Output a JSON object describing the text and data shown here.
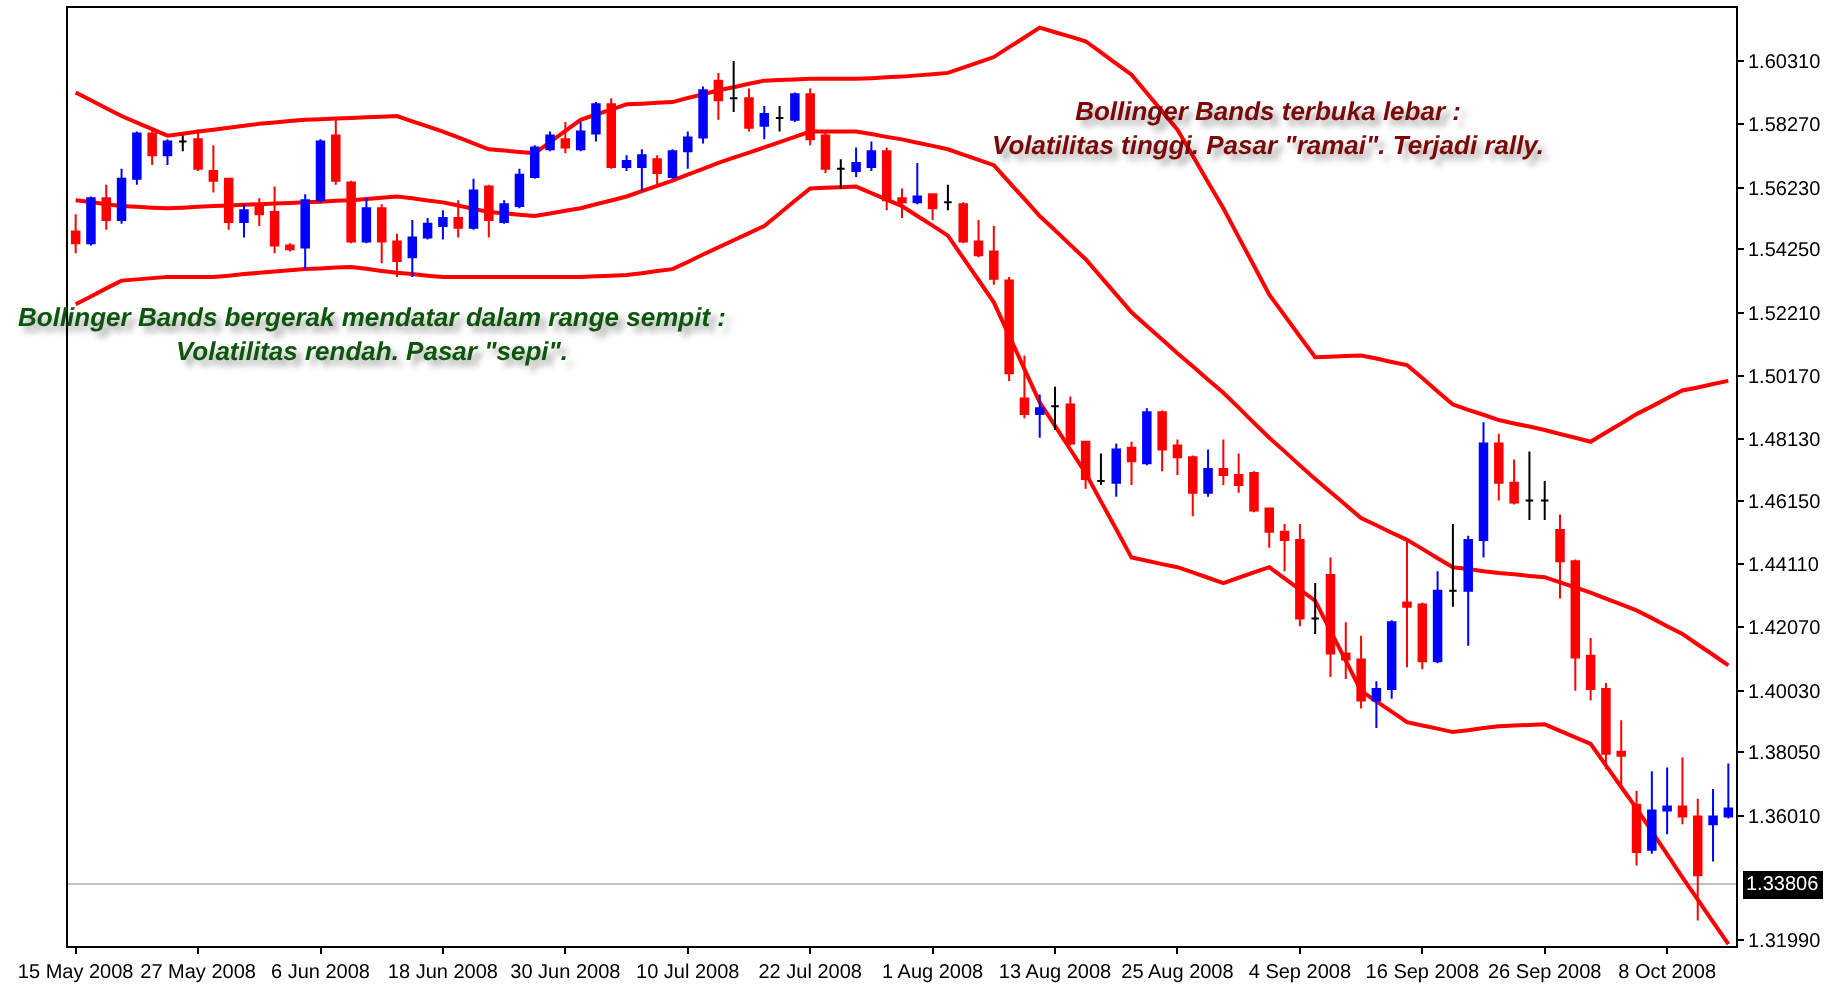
{
  "chart_data": {
    "type": "candlestick",
    "annotations": [
      "Bollinger Bands bergerak mendatar dalam range sempit :\nVolatilitas rendah. Pasar \"sepi\".",
      "Bollinger Bands terbuka lebar :\nVolatilitas tinggi. Pasar \"ramai\". Terjadi rally."
    ],
    "categories": [
      "15 May 2008",
      null,
      null,
      null,
      null,
      null,
      null,
      null,
      "27 May 2008",
      null,
      null,
      null,
      null,
      null,
      null,
      null,
      "6 Jun 2008",
      null,
      null,
      null,
      null,
      null,
      null,
      null,
      "18 Jun 2008",
      null,
      null,
      null,
      null,
      null,
      null,
      null,
      "30 Jun 2008",
      null,
      null,
      null,
      null,
      null,
      null,
      null,
      "10 Jul 2008",
      null,
      null,
      null,
      null,
      null,
      null,
      null,
      "22 Jul 2008",
      null,
      null,
      null,
      null,
      null,
      null,
      null,
      "1 Aug 2008",
      null,
      null,
      null,
      null,
      null,
      null,
      null,
      "13 Aug 2008",
      null,
      null,
      null,
      null,
      null,
      null,
      null,
      "25 Aug 2008",
      null,
      null,
      null,
      null,
      null,
      null,
      null,
      "4 Sep 2008",
      null,
      null,
      null,
      null,
      null,
      null,
      null,
      "16 Sep 2008",
      null,
      null,
      null,
      null,
      null,
      null,
      null,
      "26 Sep 2008",
      null,
      null,
      null,
      null,
      null,
      null,
      null,
      "8 Oct 2008",
      null,
      null,
      null,
      null
    ],
    "ylim": [
      1.3181,
      1.6202
    ],
    "yticks": [
      {
        "value": 1.6031,
        "label": "1.60310"
      },
      {
        "value": 1.5827,
        "label": "1.58270"
      },
      {
        "value": 1.5623,
        "label": "1.56230"
      },
      {
        "value": 1.5425,
        "label": "1.54250"
      },
      {
        "value": 1.5221,
        "label": "1.52210"
      },
      {
        "value": 1.5017,
        "label": "1.50170"
      },
      {
        "value": 1.4813,
        "label": "1.48130"
      },
      {
        "value": 1.4615,
        "label": "1.46150"
      },
      {
        "value": 1.4411,
        "label": "1.44110"
      },
      {
        "value": 1.4207,
        "label": "1.42070"
      },
      {
        "value": 1.4003,
        "label": "1.40030"
      },
      {
        "value": 1.3805,
        "label": "1.38050"
      },
      {
        "value": 1.3601,
        "label": "1.36010"
      },
      {
        "value": 1.3199,
        "label": "1.31990"
      }
    ],
    "ref_lines": [
      {
        "axis": "y",
        "value": 1.33806,
        "label": "1.33806",
        "color": "#c0c0c0"
      }
    ],
    "series": [
      {
        "type": "line",
        "color": "#ff0000",
        "values": [
          1.593,
          1.5905,
          1.5879,
          1.5854,
          1.5833,
          1.5812,
          1.5791,
          1.5797,
          1.5804,
          1.581,
          1.5816,
          1.5823,
          1.5829,
          1.5833,
          1.5838,
          1.5842,
          1.5844,
          1.5846,
          1.5848,
          1.585,
          1.5852,
          1.5854,
          1.5837,
          1.5821,
          1.5804,
          1.5785,
          1.5766,
          1.5747,
          1.5743,
          1.5738,
          1.5734,
          1.577,
          1.5806,
          1.5842,
          1.5859,
          1.5875,
          1.5892,
          1.5894,
          1.5897,
          1.5899,
          1.5912,
          1.5924,
          1.5937,
          1.5947,
          1.5958,
          1.5968,
          1.597,
          1.5972,
          1.5974,
          1.5974,
          1.5974,
          1.5974,
          1.5976,
          1.5979,
          1.5981,
          1.5985,
          1.5989,
          1.5993,
          1.601,
          1.6027,
          1.6044,
          1.6076,
          1.6107,
          1.6139,
          1.6124,
          1.611,
          1.6095,
          1.6059,
          1.6023,
          1.5987,
          1.5928,
          1.5869,
          1.581,
          1.5726,
          1.5641,
          1.5557,
          1.5464,
          1.5372,
          1.5279,
          1.5212,
          1.5144,
          1.5077,
          1.5079,
          1.5081,
          1.5083,
          1.5073,
          1.5062,
          1.5052,
          1.501,
          1.4967,
          1.4925,
          1.4908,
          1.4892,
          1.4875,
          1.4864,
          1.4854,
          1.4843,
          1.483,
          1.4818,
          1.4805,
          1.4835,
          1.4864,
          1.4894,
          1.4919,
          1.4945,
          1.497,
          1.498,
          1.4991,
          1.5001
        ]
      },
      {
        "type": "line",
        "color": "#ff0000",
        "values": [
          1.5583,
          1.5577,
          1.557,
          1.5564,
          1.5562,
          1.5559,
          1.5557,
          1.5559,
          1.5562,
          1.5564,
          1.5566,
          1.5568,
          1.557,
          1.5572,
          1.5574,
          1.5576,
          1.5578,
          1.5581,
          1.5583,
          1.5587,
          1.5591,
          1.5595,
          1.5589,
          1.5582,
          1.5576,
          1.5566,
          1.5555,
          1.5545,
          1.5541,
          1.5536,
          1.5532,
          1.554,
          1.5549,
          1.5557,
          1.557,
          1.5582,
          1.5595,
          1.5612,
          1.5629,
          1.5646,
          1.5665,
          1.5684,
          1.5703,
          1.572,
          1.5736,
          1.5753,
          1.577,
          1.5787,
          1.5804,
          1.5804,
          1.5804,
          1.5804,
          1.5796,
          1.5787,
          1.5779,
          1.5768,
          1.5758,
          1.5747,
          1.573,
          1.5713,
          1.5696,
          1.5641,
          1.5587,
          1.5532,
          1.5486,
          1.5439,
          1.5393,
          1.5336,
          1.5279,
          1.5222,
          1.5178,
          1.5134,
          1.509,
          1.5048,
          1.5005,
          1.4963,
          1.4915,
          1.4866,
          1.4818,
          1.4774,
          1.4729,
          1.4685,
          1.4643,
          1.4601,
          1.4559,
          1.4536,
          1.4512,
          1.4489,
          1.446,
          1.443,
          1.4401,
          1.4395,
          1.4388,
          1.4382,
          1.4378,
          1.4373,
          1.4369,
          1.4352,
          1.4336,
          1.4319,
          1.43,
          1.4281,
          1.4262,
          1.4237,
          1.4211,
          1.4186,
          1.4152,
          1.4119,
          1.4085
        ]
      },
      {
        "type": "line",
        "color": "#ff0000",
        "values": [
          1.5248,
          1.5273,
          1.5299,
          1.5324,
          1.5328,
          1.5332,
          1.5336,
          1.5336,
          1.5336,
          1.5336,
          1.534,
          1.5345,
          1.5349,
          1.5353,
          1.5357,
          1.5361,
          1.5363,
          1.5366,
          1.5368,
          1.5362,
          1.5355,
          1.5349,
          1.5345,
          1.534,
          1.5336,
          1.5336,
          1.5336,
          1.5336,
          1.5336,
          1.5336,
          1.5336,
          1.5336,
          1.5336,
          1.5336,
          1.5338,
          1.534,
          1.5342,
          1.5348,
          1.5355,
          1.5361,
          1.5384,
          1.5408,
          1.5431,
          1.5454,
          1.5477,
          1.55,
          1.554,
          1.5581,
          1.5621,
          1.5623,
          1.5625,
          1.5627,
          1.5606,
          1.5585,
          1.5564,
          1.5532,
          1.5501,
          1.5469,
          1.5397,
          1.5326,
          1.5254,
          1.5147,
          1.5039,
          1.4932,
          1.4856,
          1.478,
          1.4704,
          1.4613,
          1.4523,
          1.4432,
          1.4422,
          1.4411,
          1.4401,
          1.4384,
          1.4367,
          1.435,
          1.4367,
          1.4384,
          1.4401,
          1.4365,
          1.4329,
          1.4293,
          1.4196,
          1.41,
          1.4003,
          1.3969,
          1.3936,
          1.3902,
          1.3891,
          1.3881,
          1.387,
          1.3876,
          1.3883,
          1.3889,
          1.3891,
          1.3893,
          1.3895,
          1.3874,
          1.3853,
          1.3832,
          1.3763,
          1.3693,
          1.3624,
          1.355,
          1.3476,
          1.3402,
          1.333,
          1.3259,
          1.3187
        ]
      },
      {
        "colors": [
          "#ff0000",
          "#0000ff",
          "#ff0000",
          "#0000ff",
          "#0000ff",
          "#ff0000",
          "#0000ff",
          "#000000",
          "#ff0000",
          "#ff0000",
          "#ff0000",
          "#0000ff",
          "#ff0000",
          "#ff0000",
          "#ff0000",
          "#0000ff",
          "#0000ff",
          "#ff0000",
          "#ff0000",
          "#0000ff",
          "#ff0000",
          "#ff0000",
          "#0000ff",
          "#0000ff",
          "#0000ff",
          "#ff0000",
          "#0000ff",
          "#ff0000",
          "#0000ff",
          "#0000ff",
          "#0000ff",
          "#0000ff",
          "#ff0000",
          "#0000ff",
          "#0000ff",
          "#ff0000",
          "#0000ff",
          "#0000ff",
          "#ff0000",
          "#0000ff",
          "#0000ff",
          "#0000ff",
          "#ff0000",
          "#000000",
          "#ff0000",
          "#0000ff",
          "#000000",
          "#0000ff",
          "#ff0000",
          "#ff0000",
          "#000000",
          "#0000ff",
          "#0000ff",
          "#ff0000",
          "#ff0000",
          "#0000ff",
          "#ff0000",
          "#000000",
          "#ff0000",
          "#ff0000",
          "#ff0000",
          "#ff0000",
          "#ff0000",
          "#0000ff",
          "#000000",
          "#ff0000",
          "#ff0000",
          "#000000",
          "#0000ff",
          "#ff0000",
          "#0000ff",
          "#ff0000",
          "#ff0000",
          "#ff0000",
          "#0000ff",
          "#ff0000",
          "#ff0000",
          "#ff0000",
          "#ff0000",
          "#ff0000",
          "#ff0000",
          "#000000",
          "#ff0000",
          "#ff0000",
          "#ff0000",
          "#0000ff",
          "#0000ff",
          "#ff0000",
          "#ff0000",
          "#0000ff",
          "#000000",
          "#0000ff",
          "#0000ff",
          "#ff0000",
          "#ff0000",
          "#000000",
          "#000000",
          "#ff0000",
          "#ff0000",
          "#ff0000",
          "#ff0000",
          "#ff0000",
          "#ff0000",
          "#0000ff",
          "#0000ff",
          "#ff0000",
          "#ff0000",
          "#0000ff",
          "#0000ff"
        ],
        "ohlc": [
          [
            1.5482,
            1.5538,
            1.5412,
            1.5444
          ],
          [
            1.5444,
            1.5595,
            1.5437,
            1.5589
          ],
          [
            1.5589,
            1.5633,
            1.5488,
            1.5519
          ],
          [
            1.5519,
            1.5684,
            1.5507,
            1.5652
          ],
          [
            1.5652,
            1.5804,
            1.5633,
            1.5798
          ],
          [
            1.5798,
            1.581,
            1.5696,
            1.5728
          ],
          [
            1.5728,
            1.5779,
            1.5696,
            1.5772
          ],
          [
            1.5772,
            1.5791,
            1.5741,
            1.5772
          ],
          [
            1.5779,
            1.581,
            1.5677,
            1.5684
          ],
          [
            1.5677,
            1.576,
            1.5608,
            1.5646
          ],
          [
            1.5652,
            1.5652,
            1.5488,
            1.5513
          ],
          [
            1.5513,
            1.557,
            1.5463,
            1.5551
          ],
          [
            1.5564,
            1.5589,
            1.55,
            1.5538
          ],
          [
            1.5545,
            1.5627,
            1.5412,
            1.5437
          ],
          [
            1.5437,
            1.5444,
            1.5418,
            1.5425
          ],
          [
            1.5431,
            1.5602,
            1.5361,
            1.5583
          ],
          [
            1.5583,
            1.5779,
            1.5576,
            1.5772
          ],
          [
            1.5791,
            1.5842,
            1.5633,
            1.5646
          ],
          [
            1.564,
            1.5646,
            1.5444,
            1.545
          ],
          [
            1.545,
            1.5589,
            1.5444,
            1.5557
          ],
          [
            1.5557,
            1.557,
            1.538,
            1.545
          ],
          [
            1.545,
            1.5475,
            1.5336,
            1.5387
          ],
          [
            1.5399,
            1.5519,
            1.5336,
            1.5463
          ],
          [
            1.5463,
            1.5526,
            1.5456,
            1.5507
          ],
          [
            1.55,
            1.5551,
            1.5456,
            1.5526
          ],
          [
            1.5526,
            1.5583,
            1.5463,
            1.5494
          ],
          [
            1.5494,
            1.5652,
            1.5488,
            1.5614
          ],
          [
            1.5627,
            1.5633,
            1.5463,
            1.5519
          ],
          [
            1.5513,
            1.5583,
            1.5507,
            1.557
          ],
          [
            1.5564,
            1.5684,
            1.5557,
            1.5665
          ],
          [
            1.5658,
            1.576,
            1.5652,
            1.5753
          ],
          [
            1.5747,
            1.5804,
            1.5741,
            1.5791
          ],
          [
            1.5779,
            1.5835,
            1.5734,
            1.5753
          ],
          [
            1.5747,
            1.5835,
            1.5741,
            1.5804
          ],
          [
            1.5798,
            1.5899,
            1.5772,
            1.5892
          ],
          [
            1.5892,
            1.5911,
            1.5684,
            1.569
          ],
          [
            1.569,
            1.5728,
            1.5677,
            1.5709
          ],
          [
            1.569,
            1.5747,
            1.5614,
            1.5728
          ],
          [
            1.5715,
            1.5728,
            1.5633,
            1.5671
          ],
          [
            1.5658,
            1.5747,
            1.5652,
            1.5741
          ],
          [
            1.5741,
            1.5804,
            1.5684,
            1.5785
          ],
          [
            1.5785,
            1.5949,
            1.5766,
            1.5937
          ],
          [
            1.5968,
            1.5993,
            1.5842,
            1.5905
          ],
          [
            1.5911,
            1.6031,
            1.5867,
            1.5911
          ],
          [
            1.5911,
            1.5943,
            1.5804,
            1.5816
          ],
          [
            1.5823,
            1.5886,
            1.5779,
            1.5861
          ],
          [
            1.5848,
            1.5886,
            1.5804,
            1.5848
          ],
          [
            1.5842,
            1.593,
            1.5835,
            1.5924
          ],
          [
            1.5924,
            1.5943,
            1.576,
            1.5779
          ],
          [
            1.5791,
            1.5804,
            1.5671,
            1.5684
          ],
          [
            1.5684,
            1.5715,
            1.5621,
            1.5684
          ],
          [
            1.5677,
            1.5753,
            1.5658,
            1.5703
          ],
          [
            1.569,
            1.5772,
            1.5677,
            1.5741
          ],
          [
            1.5741,
            1.5753,
            1.5551,
            1.5583
          ],
          [
            1.5589,
            1.5621,
            1.5526,
            1.5576
          ],
          [
            1.5576,
            1.5703,
            1.557,
            1.5595
          ],
          [
            1.5602,
            1.5602,
            1.5519,
            1.5557
          ],
          [
            1.5576,
            1.5633,
            1.5551,
            1.5576
          ],
          [
            1.557,
            1.5576,
            1.5444,
            1.545
          ],
          [
            1.545,
            1.5519,
            1.5399,
            1.5406
          ],
          [
            1.5418,
            1.55,
            1.5311,
            1.533
          ],
          [
            1.5324,
            1.5336,
            1.5001,
            1.5026
          ],
          [
            1.4944,
            1.5083,
            1.4881,
            1.4894
          ],
          [
            1.4894,
            1.4957,
            1.4818,
            1.4913
          ],
          [
            1.4919,
            1.4982,
            1.4843,
            1.4919
          ],
          [
            1.4925,
            1.4951,
            1.4793,
            1.4799
          ],
          [
            1.4805,
            1.4805,
            1.4654,
            1.4685
          ],
          [
            1.4679,
            1.4767,
            1.4666,
            1.4679
          ],
          [
            1.4673,
            1.4799,
            1.4628,
            1.478
          ],
          [
            1.4786,
            1.4805,
            1.4666,
            1.4742
          ],
          [
            1.4736,
            1.4913,
            1.4729,
            1.49
          ],
          [
            1.49,
            1.4906,
            1.471,
            1.478
          ],
          [
            1.4793,
            1.4812,
            1.4698,
            1.4755
          ],
          [
            1.4755,
            1.4761,
            1.4565,
            1.4641
          ],
          [
            1.4641,
            1.478,
            1.4628,
            1.4717
          ],
          [
            1.4717,
            1.4812,
            1.4666,
            1.4698
          ],
          [
            1.4698,
            1.4767,
            1.4641,
            1.4666
          ],
          [
            1.4704,
            1.471,
            1.4578,
            1.4584
          ],
          [
            1.459,
            1.459,
            1.4464,
            1.4515
          ],
          [
            1.4515,
            1.454,
            1.4388,
            1.4489
          ],
          [
            1.4489,
            1.454,
            1.4211,
            1.4236
          ],
          [
            1.4236,
            1.435,
            1.4186,
            1.4236
          ],
          [
            1.4376,
            1.4432,
            1.4047,
            1.4123
          ],
          [
            1.4123,
            1.4224,
            1.4041,
            1.4104
          ],
          [
            1.4104,
            1.418,
            1.3946,
            1.3972
          ],
          [
            1.3972,
            1.4034,
            1.3883,
            1.4009
          ],
          [
            1.4009,
            1.423,
            1.3977,
            1.4224
          ],
          [
            1.4287,
            1.4483,
            1.4079,
            1.4274
          ],
          [
            1.4281,
            1.4287,
            1.4072,
            1.4098
          ],
          [
            1.4098,
            1.4388,
            1.4092,
            1.4325
          ],
          [
            1.4325,
            1.454,
            1.4274,
            1.4325
          ],
          [
            1.4325,
            1.4502,
            1.4148,
            1.4489
          ],
          [
            1.4489,
            1.4868,
            1.4432,
            1.4799
          ],
          [
            1.4799,
            1.4831,
            1.4616,
            1.4673
          ],
          [
            1.4673,
            1.4748,
            1.4603,
            1.4609
          ],
          [
            1.4616,
            1.4774,
            1.4553,
            1.4616
          ],
          [
            1.4616,
            1.4679,
            1.4553,
            1.4616
          ],
          [
            1.4521,
            1.4571,
            1.43,
            1.442
          ],
          [
            1.442,
            1.4426,
            1.4003,
            1.411
          ],
          [
            1.4116,
            1.4173,
            1.3972,
            1.4009
          ],
          [
            1.4009,
            1.4028,
            1.375,
            1.38
          ],
          [
            1.3807,
            1.3908,
            1.3687,
            1.3794
          ],
          [
            1.3636,
            1.368,
            1.344,
            1.3484
          ],
          [
            1.3491,
            1.3744,
            1.3478,
            1.3617
          ],
          [
            1.3617,
            1.3756,
            1.3541,
            1.363
          ],
          [
            1.363,
            1.3788,
            1.3573,
            1.3598
          ],
          [
            1.3598,
            1.3655,
            1.3263,
            1.3409
          ],
          [
            1.3573,
            1.3687,
            1.3453,
            1.3598
          ],
          [
            1.3598,
            1.3769,
            1.3592,
            1.3624
          ]
        ]
      }
    ]
  }
}
